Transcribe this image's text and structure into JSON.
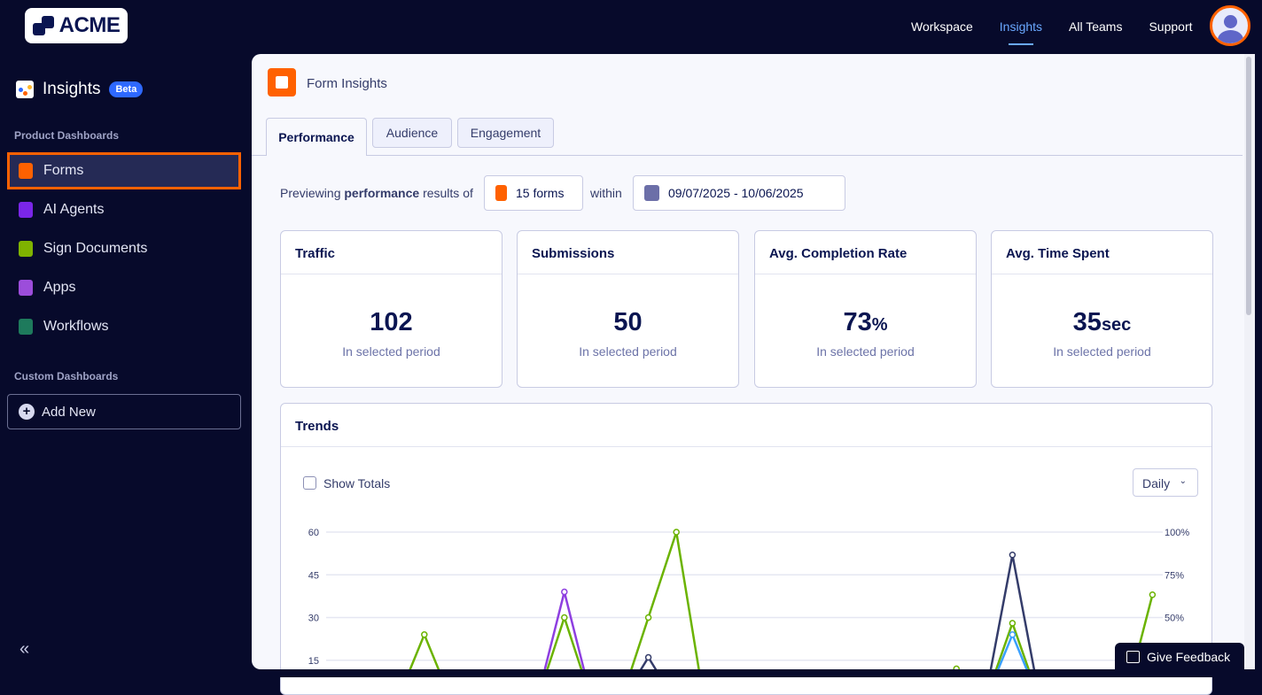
{
  "brand": {
    "logo_text": "ACME"
  },
  "topnav": {
    "items": [
      {
        "label": "Workspace"
      },
      {
        "label": "Insights",
        "active": true
      },
      {
        "label": "All Teams"
      },
      {
        "label": "Support"
      }
    ]
  },
  "sidebar": {
    "title": "Insights",
    "badge": "Beta",
    "section1": "Product Dashboards",
    "items": [
      {
        "label": "Forms",
        "icon": "forms-icon",
        "color": "#ff6100",
        "selected": true
      },
      {
        "label": "AI Agents",
        "icon": "ai-agents-icon",
        "color": "#7a26e8"
      },
      {
        "label": "Sign Documents",
        "icon": "sign-documents-icon",
        "color": "#7fb300"
      },
      {
        "label": "Apps",
        "icon": "apps-icon",
        "color": "#9c4ddb"
      },
      {
        "label": "Workflows",
        "icon": "workflows-icon",
        "color": "#1e7a5c"
      }
    ],
    "section2": "Custom Dashboards",
    "add_new": "Add New",
    "collapse": "«"
  },
  "page": {
    "title": "Form Insights",
    "tabs": [
      {
        "label": "Performance",
        "active": true
      },
      {
        "label": "Audience"
      },
      {
        "label": "Engagement"
      }
    ],
    "filter": {
      "prefix_a": "Previewing ",
      "prefix_b": "performance",
      "prefix_c": " results of",
      "forms": "15 forms",
      "within": "within",
      "date_range": "09/07/2025 - 10/06/2025"
    }
  },
  "cards": [
    {
      "title": "Traffic",
      "value": "102",
      "unit": "",
      "sub": "In selected period"
    },
    {
      "title": "Submissions",
      "value": "50",
      "unit": "",
      "sub": "In selected period"
    },
    {
      "title": "Avg. Completion Rate",
      "value": "73",
      "unit": "%",
      "sub": "In selected period"
    },
    {
      "title": "Avg. Time Spent",
      "value": "35",
      "unit": "sec",
      "sub": "In selected period"
    }
  ],
  "trends": {
    "title": "Trends",
    "show_totals": "Show Totals",
    "show_totals_checked": false,
    "interval": "Daily"
  },
  "chart_data": {
    "type": "line",
    "y_left": {
      "ticks": [
        "15",
        "30",
        "45",
        "60"
      ],
      "range": [
        0,
        60
      ]
    },
    "y_right": {
      "ticks": [
        "50%",
        "75%",
        "100%"
      ],
      "range": [
        0,
        100
      ]
    },
    "grid": true,
    "series": [
      {
        "color": "#6bb300",
        "values": [
          0,
          0,
          0,
          24,
          0,
          0,
          0,
          0,
          30,
          0,
          0,
          30,
          60,
          0,
          0,
          0,
          0,
          0,
          0,
          0,
          0,
          0,
          12,
          0,
          28,
          0,
          0,
          0,
          0,
          38
        ]
      },
      {
        "color": "#8e3fe0",
        "values": [
          0,
          0,
          0,
          0,
          0,
          0,
          0,
          0,
          39,
          0,
          0,
          0,
          0,
          0,
          0,
          0,
          0,
          0,
          0,
          0,
          0,
          0,
          0,
          0,
          0,
          0,
          0,
          0,
          0,
          0
        ]
      },
      {
        "color": "#343c6a",
        "values": [
          0,
          0,
          0,
          0,
          0,
          0,
          0,
          0,
          0,
          0,
          0,
          16,
          0,
          0,
          0,
          0,
          0,
          0,
          0,
          0,
          0,
          0,
          0,
          0,
          52,
          0,
          0,
          0,
          0,
          0
        ]
      },
      {
        "color": "#3aa0ff",
        "values": [
          0,
          0,
          0,
          0,
          0,
          0,
          0,
          0,
          0,
          0,
          0,
          0,
          0,
          0,
          0,
          0,
          0,
          0,
          0,
          0,
          0,
          0,
          0,
          0,
          24,
          0,
          0,
          0,
          0,
          0
        ]
      }
    ]
  },
  "feedback": {
    "label": "Give Feedback"
  }
}
